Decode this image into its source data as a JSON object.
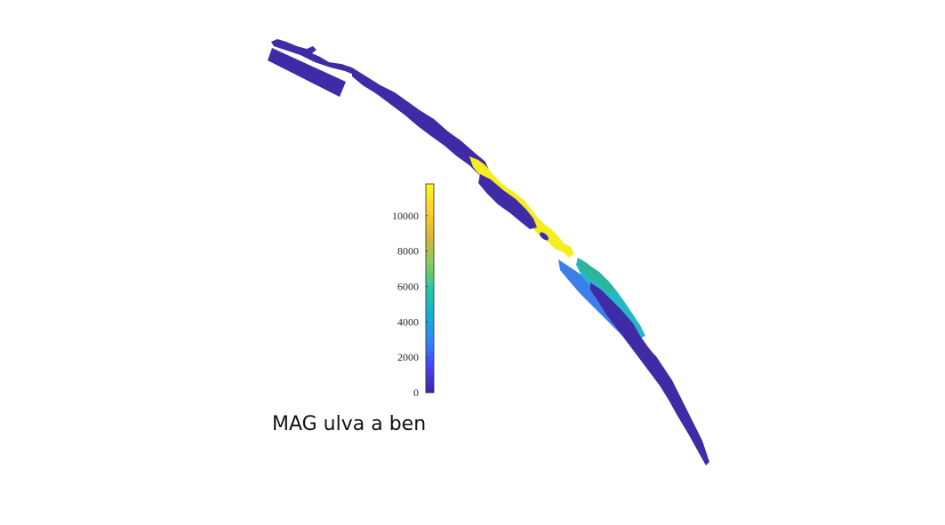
{
  "figure": {
    "title": "MAG ulva a ben"
  },
  "colorbar": {
    "colormap": "parula",
    "min": 0,
    "max": 11800,
    "ticks": [
      {
        "value": 0,
        "label": "0"
      },
      {
        "value": 2000,
        "label": "2000"
      },
      {
        "value": 4000,
        "label": "4000"
      },
      {
        "value": 6000,
        "label": "6000"
      },
      {
        "value": 8000,
        "label": "8000"
      },
      {
        "value": 10000,
        "label": "10000"
      }
    ],
    "stops": [
      "#3e26a8",
      "#4743f8",
      "#2c8af6",
      "#11b1d3",
      "#2bc6a2",
      "#8ccb59",
      "#d8b836",
      "#fdcf2f",
      "#f9fb15"
    ]
  },
  "colors": {
    "low": "#3f2ba6",
    "mid_blue": "#3d7fea",
    "cyan": "#23b7c9",
    "teal": "#2bb59a",
    "high": "#f5ee1f"
  }
}
